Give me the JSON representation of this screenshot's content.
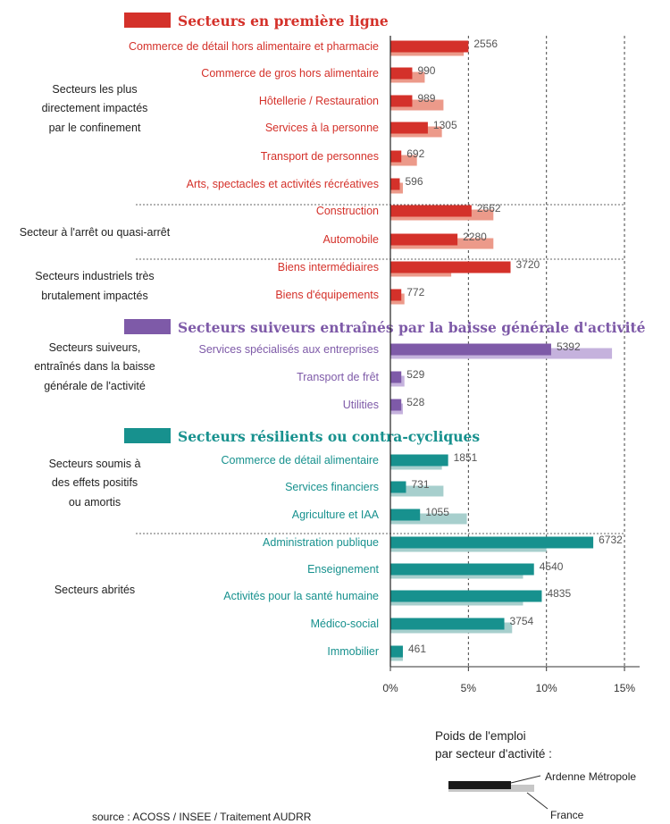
{
  "chart_data": {
    "type": "bar",
    "orientation": "horizontal",
    "value_labels_unit": "emplois",
    "xlim": [
      0,
      15
    ],
    "x_ticks": [
      "0%",
      "5%",
      "10%",
      "15%"
    ],
    "series": [
      {
        "name": "Ardenne Métropole",
        "color": "dark"
      },
      {
        "name": "France",
        "color": "light"
      }
    ],
    "sections": [
      {
        "title": "Secteurs en première ligne",
        "color": "#d4312a",
        "light_color": "#ec9a8a",
        "groups": [
          {
            "label": [
              "Secteurs les plus",
              "directement impactés",
              "par le confinement"
            ],
            "categories": [
              {
                "label": "Commerce de détail hors alimentaire et pharmacie",
                "value": 2556,
                "pct_ardenne": 5.0,
                "pct_france": 4.7
              },
              {
                "label": "Commerce de gros hors alimentaire",
                "value": 990,
                "pct_ardenne": 1.4,
                "pct_france": 2.2
              },
              {
                "label": "Hôtellerie / Restauration",
                "value": 989,
                "pct_ardenne": 1.4,
                "pct_france": 3.4
              },
              {
                "label": "Services à la personne",
                "value": 1305,
                "pct_ardenne": 2.4,
                "pct_france": 3.3
              },
              {
                "label": "Transport de personnes",
                "value": 692,
                "pct_ardenne": 0.7,
                "pct_france": 1.7
              },
              {
                "label": "Arts, spectacles et activités récréatives",
                "value": 596,
                "pct_ardenne": 0.6,
                "pct_france": 0.8
              }
            ]
          },
          {
            "label": [
              "Secteur à l'arrêt ou quasi-arrêt"
            ],
            "categories": [
              {
                "label": "Construction",
                "value": 2662,
                "pct_ardenne": 5.2,
                "pct_france": 6.6
              },
              {
                "label": "Automobile",
                "value": 2280,
                "pct_ardenne": 4.3,
                "pct_france": 6.6
              }
            ]
          },
          {
            "label": [
              "Secteurs industriels très",
              "brutalement impactés"
            ],
            "categories": [
              {
                "label": "Biens intermédiaires",
                "value": 3720,
                "pct_ardenne": 7.7,
                "pct_france": 3.9
              },
              {
                "label": "Biens d'équipements",
                "value": 772,
                "pct_ardenne": 0.7,
                "pct_france": 0.9
              }
            ]
          }
        ]
      },
      {
        "title": "Secteurs suiveurs entraînés par la baisse générale d'activité",
        "color": "#7e5aa8",
        "light_color": "#c5b2dd",
        "groups": [
          {
            "label": [
              "Secteurs suiveurs,",
              "entraînés dans la baisse",
              "générale de l'activité"
            ],
            "categories": [
              {
                "label": "Services spécialisés aux entreprises",
                "value": 5392,
                "pct_ardenne": 10.3,
                "pct_france": 14.2
              },
              {
                "label": "Transport de frêt",
                "value": 529,
                "pct_ardenne": 0.7,
                "pct_france": 0.9
              },
              {
                "label": "Utilities",
                "value": 528,
                "pct_ardenne": 0.7,
                "pct_france": 0.8
              }
            ]
          }
        ]
      },
      {
        "title": "Secteurs résilients ou contra-cycliques",
        "color": "#17918e",
        "light_color": "#a7cfcd",
        "groups": [
          {
            "label": [
              "Secteurs soumis à",
              "des effets positifs",
              "ou amortis"
            ],
            "categories": [
              {
                "label": "Commerce de détail alimentaire",
                "value": 1851,
                "pct_ardenne": 3.7,
                "pct_france": 3.3
              },
              {
                "label": "Services financiers",
                "value": 731,
                "pct_ardenne": 1.0,
                "pct_france": 3.4
              },
              {
                "label": "Agriculture et IAA",
                "value": 1055,
                "pct_ardenne": 1.9,
                "pct_france": 4.9
              }
            ]
          },
          {
            "label": [
              "Secteurs abrités"
            ],
            "categories": [
              {
                "label": "Administration publique",
                "value": 6732,
                "pct_ardenne": 13.0,
                "pct_france": 10.0
              },
              {
                "label": "Enseignement",
                "value": 4540,
                "pct_ardenne": 9.2,
                "pct_france": 8.5
              },
              {
                "label": "Activités pour la santé humaine",
                "value": 4835,
                "pct_ardenne": 9.7,
                "pct_france": 8.5
              },
              {
                "label": "Médico-social",
                "value": 3754,
                "pct_ardenne": 7.3,
                "pct_france": 7.8
              },
              {
                "label": "Immobilier",
                "value": 461,
                "pct_ardenne": 0.8,
                "pct_france": 0.8
              }
            ]
          }
        ]
      }
    ],
    "legend": {
      "title_lines": [
        "Poids de l'emploi",
        "par secteur d'activité :"
      ],
      "items": [
        "Ardenne Métropole",
        "France"
      ]
    },
    "source": "source : ACOSS / INSEE / Traitement AUDRR"
  }
}
